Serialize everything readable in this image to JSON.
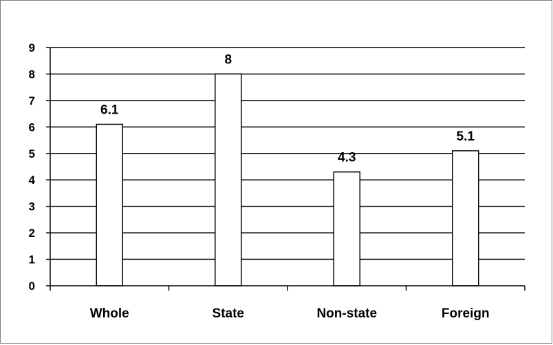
{
  "chart_data": {
    "type": "bar",
    "categories": [
      "Whole",
      "State",
      "Non-state",
      "Foreign"
    ],
    "values": [
      6.1,
      8,
      4.3,
      5.1
    ],
    "data_labels": [
      "6.1",
      "8",
      "4.3",
      "5.1"
    ],
    "ylim": [
      0,
      9
    ],
    "yticks": [
      "0",
      "1",
      "2",
      "3",
      "4",
      "5",
      "6",
      "7",
      "8",
      "9"
    ],
    "grid": true,
    "legend": "none",
    "colors": {
      "bar_fill": "#ffffff",
      "bar_stroke": "#000000",
      "grid": "#000000"
    }
  }
}
